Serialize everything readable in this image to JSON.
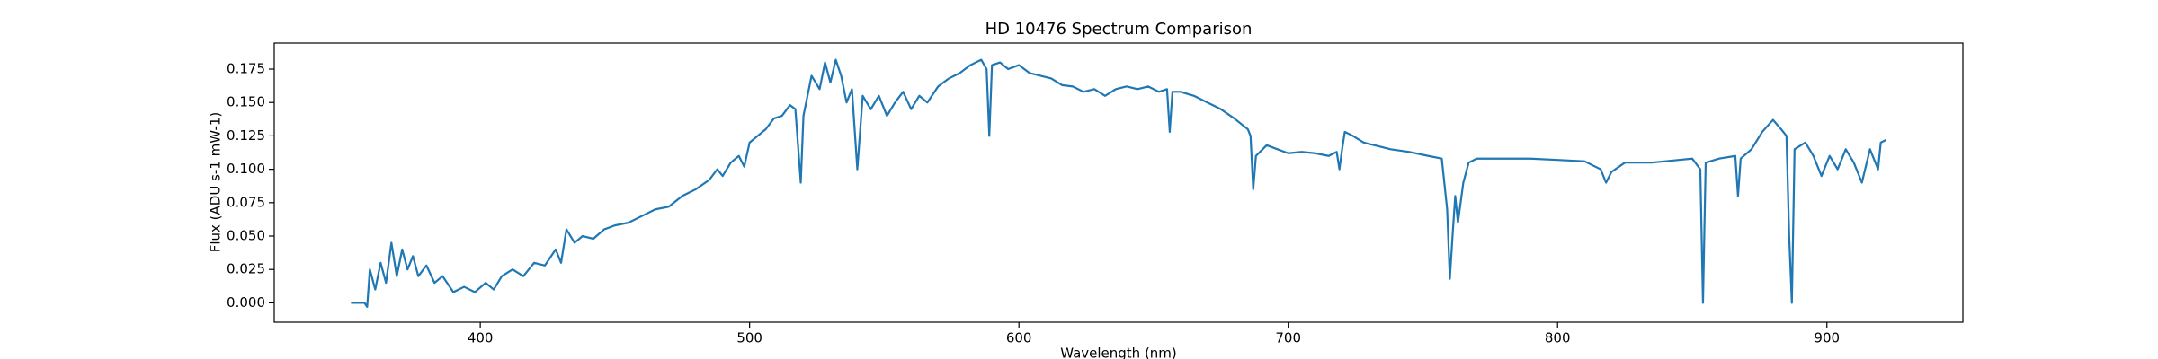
{
  "chart_data": {
    "type": "line",
    "title": "HD 10476 Spectrum Comparison",
    "x_label": "Wavelength (nm)",
    "y_label": "Flux (ADU s-1 mW-1)",
    "color": "#1f77b4",
    "xlim": [
      323.5,
      950.5
    ],
    "ylim": [
      -0.0145,
      0.1945
    ],
    "xticks": [
      400,
      500,
      600,
      700,
      800,
      900
    ],
    "yticks": [
      {
        "value": 0,
        "label": "0.000"
      },
      {
        "value": 0.025,
        "label": "0.025"
      },
      {
        "value": 0.05,
        "label": "0.050"
      },
      {
        "value": 0.075,
        "label": "0.075"
      },
      {
        "value": 0.1,
        "label": "0.100"
      },
      {
        "value": 0.125,
        "label": "0.125"
      },
      {
        "value": 0.15,
        "label": "0.150"
      },
      {
        "value": 0.175,
        "label": "0.175"
      }
    ],
    "x": [
      352,
      357,
      358,
      359,
      361,
      363,
      365,
      367,
      369,
      371,
      373,
      375,
      377,
      380,
      383,
      386,
      390,
      394,
      398,
      402,
      405,
      408,
      412,
      416,
      420,
      424,
      428,
      430,
      432,
      435,
      438,
      442,
      446,
      450,
      455,
      460,
      465,
      470,
      475,
      480,
      485,
      488,
      490,
      493,
      496,
      498,
      500,
      503,
      506,
      509,
      512,
      515,
      517,
      519,
      520,
      523,
      526,
      528,
      530,
      532,
      534,
      536,
      538,
      540,
      542,
      545,
      548,
      551,
      554,
      557,
      560,
      563,
      566,
      570,
      574,
      578,
      582,
      586,
      588,
      589,
      590,
      593,
      596,
      600,
      604,
      608,
      612,
      616,
      620,
      624,
      628,
      632,
      636,
      640,
      644,
      648,
      652,
      655,
      656,
      657,
      660,
      665,
      670,
      675,
      680,
      685,
      686,
      687,
      688,
      692,
      696,
      700,
      705,
      710,
      715,
      718,
      719,
      720,
      721,
      724,
      728,
      732,
      738,
      745,
      752,
      757,
      759,
      760,
      761,
      762,
      763,
      765,
      767,
      770,
      780,
      790,
      800,
      810,
      816,
      818,
      820,
      825,
      835,
      845,
      850,
      853,
      854,
      855,
      860,
      866,
      867,
      868,
      872,
      876,
      880,
      883,
      885,
      886,
      887,
      888,
      892,
      895,
      898,
      901,
      904,
      907,
      910,
      913,
      916,
      919,
      920,
      922
    ],
    "values": [
      0.0,
      0.0,
      -0.003,
      0.025,
      0.01,
      0.03,
      0.015,
      0.045,
      0.02,
      0.04,
      0.025,
      0.035,
      0.02,
      0.028,
      0.015,
      0.02,
      0.008,
      0.012,
      0.008,
      0.015,
      0.01,
      0.02,
      0.025,
      0.02,
      0.03,
      0.028,
      0.04,
      0.03,
      0.055,
      0.045,
      0.05,
      0.048,
      0.055,
      0.058,
      0.06,
      0.065,
      0.07,
      0.072,
      0.08,
      0.085,
      0.092,
      0.1,
      0.095,
      0.105,
      0.11,
      0.102,
      0.12,
      0.125,
      0.13,
      0.138,
      0.14,
      0.148,
      0.145,
      0.09,
      0.14,
      0.17,
      0.16,
      0.18,
      0.165,
      0.182,
      0.17,
      0.15,
      0.16,
      0.1,
      0.155,
      0.145,
      0.155,
      0.14,
      0.15,
      0.158,
      0.145,
      0.155,
      0.15,
      0.162,
      0.168,
      0.172,
      0.178,
      0.182,
      0.175,
      0.125,
      0.178,
      0.18,
      0.175,
      0.178,
      0.172,
      0.17,
      0.168,
      0.163,
      0.162,
      0.158,
      0.16,
      0.155,
      0.16,
      0.162,
      0.16,
      0.162,
      0.158,
      0.16,
      0.128,
      0.158,
      0.158,
      0.155,
      0.15,
      0.145,
      0.138,
      0.13,
      0.125,
      0.085,
      0.11,
      0.118,
      0.115,
      0.112,
      0.113,
      0.112,
      0.11,
      0.113,
      0.1,
      0.115,
      0.128,
      0.125,
      0.12,
      0.118,
      0.115,
      0.113,
      0.11,
      0.108,
      0.07,
      0.018,
      0.05,
      0.08,
      0.06,
      0.09,
      0.105,
      0.108,
      0.108,
      0.108,
      0.107,
      0.106,
      0.1,
      0.09,
      0.098,
      0.105,
      0.105,
      0.107,
      0.108,
      0.1,
      0.0,
      0.105,
      0.108,
      0.11,
      0.08,
      0.108,
      0.115,
      0.128,
      0.137,
      0.13,
      0.125,
      0.05,
      0.0,
      0.115,
      0.12,
      0.11,
      0.095,
      0.11,
      0.1,
      0.115,
      0.105,
      0.09,
      0.115,
      0.1,
      0.12,
      0.122
    ]
  }
}
